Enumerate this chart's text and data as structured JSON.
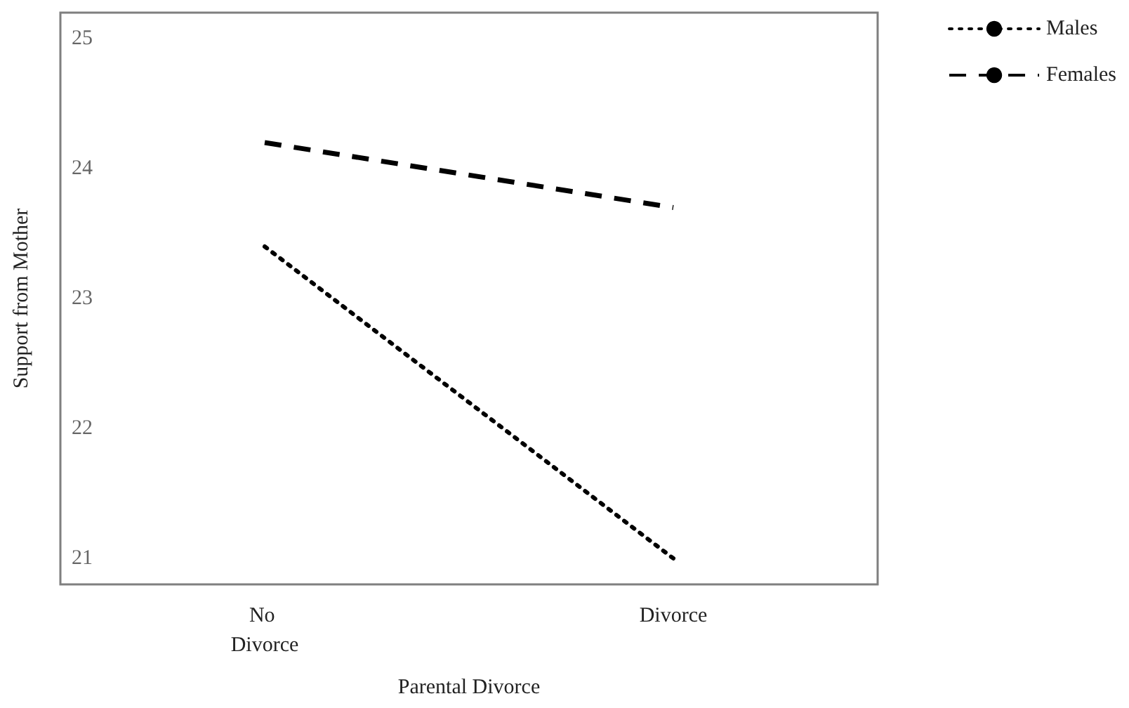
{
  "chart_data": {
    "type": "line",
    "xlabel": "Parental Divorce",
    "ylabel": "Support from Mother",
    "categories": [
      "No Divorce",
      "Divorce"
    ],
    "series": [
      {
        "name": "Males",
        "color": "#000000",
        "line_style": "dotted",
        "values": [
          23.4,
          21.0
        ]
      },
      {
        "name": "Females",
        "color": "#000000",
        "line_style": "dashed",
        "values": [
          24.2,
          23.7
        ]
      }
    ],
    "ylim": [
      20.8,
      25.2
    ],
    "yticks": [
      21,
      22,
      23,
      24,
      25
    ],
    "grid": false,
    "legend": "top right",
    "marker": "none"
  }
}
